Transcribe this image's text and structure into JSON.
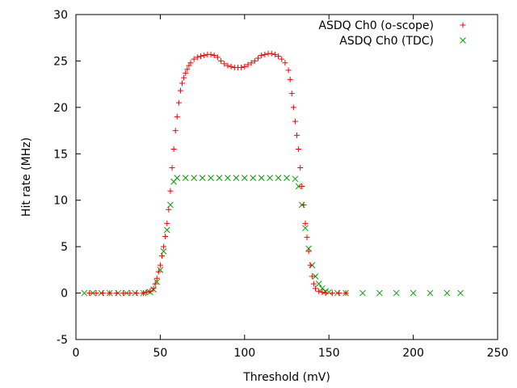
{
  "chart_data": {
    "type": "scatter",
    "title": "",
    "xlabel": "Threshold (mV)",
    "ylabel": "Hit rate (MHz)",
    "xlim": [
      0,
      250
    ],
    "ylim": [
      -5,
      30
    ],
    "x_ticks": [
      0,
      50,
      100,
      150,
      200,
      250
    ],
    "y_ticks": [
      -5,
      0,
      5,
      10,
      15,
      20,
      25,
      30
    ],
    "grid": false,
    "legend_position": "top-right",
    "series": [
      {
        "name": "ASDQ Ch0 (o-scope)",
        "marker": "plus",
        "color": "#ff0000",
        "points": [
          [
            8,
            0
          ],
          [
            12,
            0
          ],
          [
            16,
            0
          ],
          [
            20,
            0
          ],
          [
            24,
            0
          ],
          [
            28,
            0
          ],
          [
            32,
            0
          ],
          [
            36,
            0
          ],
          [
            40,
            0
          ],
          [
            42,
            0.1
          ],
          [
            44,
            0.2
          ],
          [
            46,
            0.5
          ],
          [
            47,
            1.0
          ],
          [
            48,
            1.6
          ],
          [
            49,
            2.3
          ],
          [
            50,
            3.0
          ],
          [
            51,
            4.0
          ],
          [
            52,
            5.0
          ],
          [
            53,
            6.1
          ],
          [
            54,
            7.5
          ],
          [
            55,
            9.0
          ],
          [
            56,
            11.0
          ],
          [
            57,
            13.5
          ],
          [
            58,
            15.5
          ],
          [
            59,
            17.5
          ],
          [
            60,
            19.0
          ],
          [
            61,
            20.5
          ],
          [
            62,
            21.8
          ],
          [
            63,
            22.6
          ],
          [
            64,
            23.2
          ],
          [
            65,
            23.7
          ],
          [
            66,
            24.1
          ],
          [
            67,
            24.5
          ],
          [
            68,
            24.8
          ],
          [
            70,
            25.2
          ],
          [
            72,
            25.4
          ],
          [
            74,
            25.5
          ],
          [
            76,
            25.6
          ],
          [
            78,
            25.7
          ],
          [
            80,
            25.7
          ],
          [
            82,
            25.6
          ],
          [
            84,
            25.4
          ],
          [
            86,
            25.0
          ],
          [
            88,
            24.7
          ],
          [
            90,
            24.5
          ],
          [
            92,
            24.4
          ],
          [
            94,
            24.3
          ],
          [
            96,
            24.3
          ],
          [
            98,
            24.3
          ],
          [
            100,
            24.4
          ],
          [
            102,
            24.6
          ],
          [
            104,
            24.8
          ],
          [
            106,
            25.0
          ],
          [
            108,
            25.3
          ],
          [
            110,
            25.6
          ],
          [
            112,
            25.7
          ],
          [
            114,
            25.8
          ],
          [
            116,
            25.8
          ],
          [
            118,
            25.7
          ],
          [
            120,
            25.5
          ],
          [
            122,
            25.2
          ],
          [
            124,
            24.8
          ],
          [
            126,
            24.0
          ],
          [
            127,
            23.0
          ],
          [
            128,
            21.5
          ],
          [
            129,
            20.0
          ],
          [
            130,
            18.5
          ],
          [
            131,
            17.0
          ],
          [
            132,
            15.5
          ],
          [
            133,
            13.5
          ],
          [
            134,
            11.5
          ],
          [
            135,
            9.5
          ],
          [
            136,
            7.5
          ],
          [
            137,
            6.0
          ],
          [
            138,
            4.5
          ],
          [
            139,
            3.0
          ],
          [
            140,
            1.8
          ],
          [
            141,
            1.0
          ],
          [
            142,
            0.5
          ],
          [
            144,
            0.2
          ],
          [
            146,
            0.1
          ],
          [
            148,
            0
          ],
          [
            152,
            0
          ],
          [
            156,
            0
          ],
          [
            160,
            0
          ]
        ]
      },
      {
        "name": "ASDQ Ch0 (TDC)",
        "marker": "cross",
        "color": "#00a000",
        "points": [
          [
            5,
            0
          ],
          [
            10,
            0
          ],
          [
            15,
            0
          ],
          [
            20,
            0
          ],
          [
            25,
            0
          ],
          [
            30,
            0
          ],
          [
            35,
            0
          ],
          [
            40,
            0
          ],
          [
            44,
            0.1
          ],
          [
            46,
            0.4
          ],
          [
            48,
            1.2
          ],
          [
            50,
            2.5
          ],
          [
            52,
            4.5
          ],
          [
            54,
            6.8
          ],
          [
            56,
            9.5
          ],
          [
            58,
            12.0
          ],
          [
            60,
            12.4
          ],
          [
            65,
            12.4
          ],
          [
            70,
            12.4
          ],
          [
            75,
            12.4
          ],
          [
            80,
            12.4
          ],
          [
            85,
            12.4
          ],
          [
            90,
            12.4
          ],
          [
            95,
            12.4
          ],
          [
            100,
            12.4
          ],
          [
            105,
            12.4
          ],
          [
            110,
            12.4
          ],
          [
            115,
            12.4
          ],
          [
            120,
            12.4
          ],
          [
            125,
            12.4
          ],
          [
            130,
            12.3
          ],
          [
            132,
            11.5
          ],
          [
            134,
            9.5
          ],
          [
            136,
            7.0
          ],
          [
            138,
            4.8
          ],
          [
            140,
            3.0
          ],
          [
            142,
            1.8
          ],
          [
            144,
            1.0
          ],
          [
            146,
            0.5
          ],
          [
            148,
            0.2
          ],
          [
            150,
            0.1
          ],
          [
            155,
            0
          ],
          [
            160,
            0
          ],
          [
            170,
            0
          ],
          [
            180,
            0
          ],
          [
            190,
            0
          ],
          [
            200,
            0
          ],
          [
            210,
            0
          ],
          [
            220,
            0
          ],
          [
            228,
            0
          ]
        ]
      }
    ]
  }
}
